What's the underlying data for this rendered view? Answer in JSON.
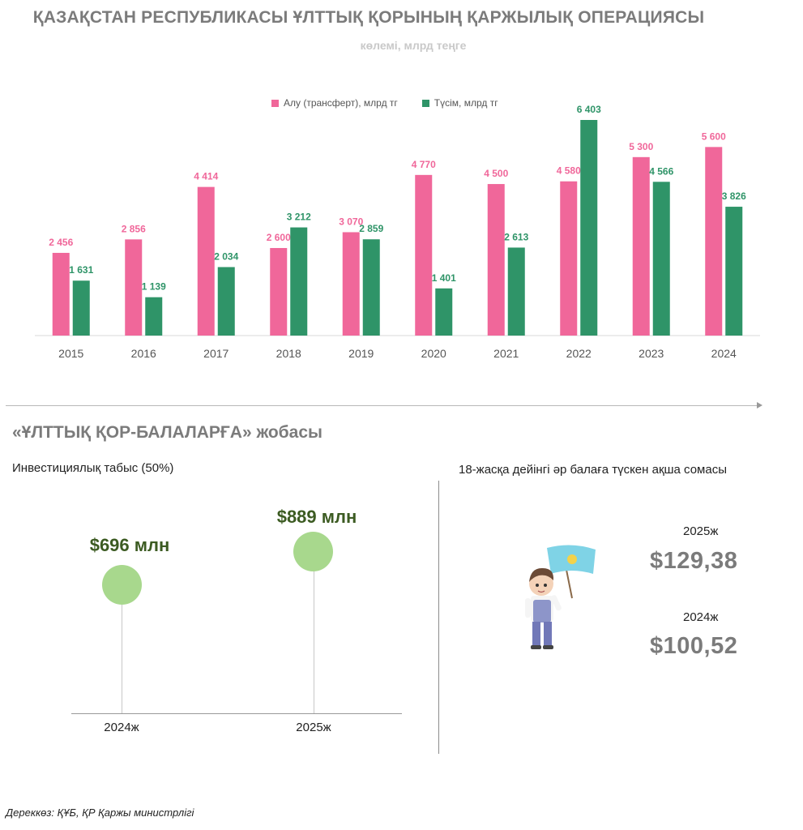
{
  "header": {
    "title": "ҚАЗАҚСТАН РЕСПУБЛИКАСЫ ҰЛТТЫҚ ҚОРЫНЫҢ ҚАРЖЫЛЫҚ ОПЕРАЦИЯСЫ",
    "subtitle": "көлемі, млрд теңге"
  },
  "colors": {
    "pink": "#f0679a",
    "green": "#2f9468",
    "dot_green": "#a8d88d",
    "dark_green_text": "#3c5b22"
  },
  "chart_data": {
    "type": "bar",
    "title": "ҚАЗАҚСТАН РЕСПУБЛИКАСЫ ҰЛТТЫҚ ҚОРЫНЫҢ ҚАРЖЫЛЫҚ ОПЕРАЦИЯСЫ",
    "subtitle": "көлемі, млрд теңге",
    "categories": [
      "2015",
      "2016",
      "2017",
      "2018",
      "2019",
      "2020",
      "2021",
      "2022",
      "2023",
      "2024"
    ],
    "series": [
      {
        "name": "Алу (трансферт), млрд тг",
        "color": "#f0679a",
        "values": [
          2456,
          2856,
          4414,
          2600,
          3070,
          4770,
          4500,
          4580,
          5300,
          5600
        ],
        "labels": [
          "2 456",
          "2 856",
          "4 414",
          "2 600",
          "3 070",
          "4 770",
          "4 500",
          "4 580",
          "5 300",
          "5 600"
        ]
      },
      {
        "name": "Түсім, млрд тг",
        "color": "#2f9468",
        "values": [
          1631,
          1139,
          2034,
          3212,
          2859,
          1401,
          2613,
          6403,
          4566,
          3826
        ],
        "labels": [
          "1 631",
          "1 139",
          "2 034",
          "3 212",
          "2 859",
          "1 401",
          "2 613",
          "6 403",
          "4 566",
          "3 826"
        ]
      }
    ],
    "ylim": [
      0,
      6403
    ],
    "grid": false,
    "legend_position": "top-center"
  },
  "project": {
    "title": "«ҰЛТТЫҚ ҚОР-БАЛАЛАРҒА» жобасы",
    "investment_label": "Инвестициялық табыс (50%)",
    "investment": [
      {
        "year": "2024ж",
        "value": "$696 млн",
        "amount": 696
      },
      {
        "year": "2025ж",
        "value": "$889 млн",
        "amount": 889
      }
    ],
    "per_child_label": "18-жасқа дейінгі әр балаға түскен ақша сомасы",
    "per_child": [
      {
        "year": "2025ж",
        "value": "$129,38"
      },
      {
        "year": "2024ж",
        "value": "$100,52"
      }
    ]
  },
  "footer": {
    "source": "Дереккөз: ҚҰБ, ҚР Қаржы министрлігі"
  }
}
